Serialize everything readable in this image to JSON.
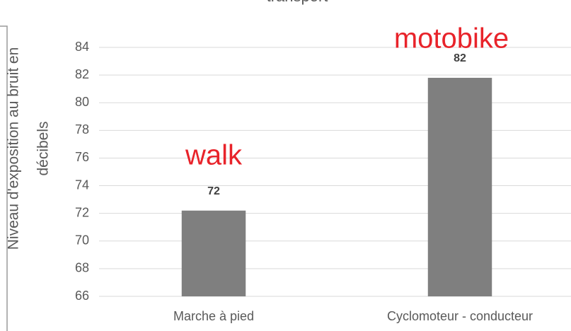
{
  "chart_data": {
    "type": "bar",
    "title": "transport",
    "y_label_lines": [
      "Niveau d'exposition au bruit en",
      "décibels"
    ],
    "categories": [
      "Marche à pied",
      "Cyclomoteur - conducteur"
    ],
    "values": [
      72.2,
      81.8
    ],
    "value_labels": [
      "72",
      "82"
    ],
    "color": "#7f7f7f",
    "ylim": [
      66,
      84
    ],
    "yticks": [
      66,
      68,
      70,
      72,
      74,
      76,
      78,
      80,
      82,
      84
    ],
    "grid": true,
    "annotations": [
      "walk",
      "motobike"
    ]
  }
}
